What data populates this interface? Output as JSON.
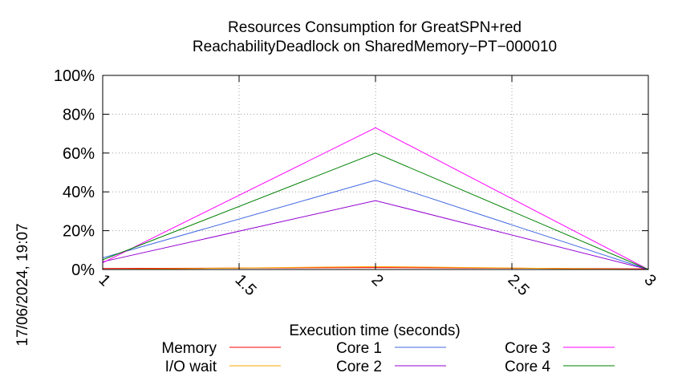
{
  "chart_data": {
    "type": "line",
    "title": "Resources Consumption for GreatSPN+red",
    "subtitle": "ReachabilityDeadlock on SharedMemory−PT−000010",
    "xlabel": "Execution time (seconds)",
    "ylabel": "",
    "xlim": [
      1,
      3
    ],
    "ylim": [
      0,
      100
    ],
    "xticks": [
      1,
      1.5,
      2,
      2.5,
      3
    ],
    "xtick_labels": [
      "1",
      "1.5",
      "2",
      "2.5",
      "3"
    ],
    "yticks": [
      0,
      20,
      40,
      60,
      80,
      100
    ],
    "ytick_labels": [
      "0%",
      "20%",
      "40%",
      "60%",
      "80%",
      "100%"
    ],
    "grid": true,
    "legend_position": "bottom",
    "x": [
      1,
      2,
      3
    ],
    "series": [
      {
        "name": "Memory",
        "color": "#ff0000",
        "values": [
          0.5,
          1.0,
          0.3
        ]
      },
      {
        "name": "I/O wait",
        "color": "#ffa500",
        "values": [
          0,
          1.5,
          0
        ]
      },
      {
        "name": "Core 1",
        "color": "#4169e1",
        "values": [
          6,
          46,
          0
        ]
      },
      {
        "name": "Core 2",
        "color": "#9400d3",
        "values": [
          4,
          35.5,
          0
        ]
      },
      {
        "name": "Core 3",
        "color": "#ff00ff",
        "values": [
          3.5,
          73,
          0
        ]
      },
      {
        "name": "Core 4",
        "color": "#008000",
        "values": [
          5,
          60,
          0
        ]
      }
    ]
  },
  "timestamp": "17/06/2024, 19:07"
}
